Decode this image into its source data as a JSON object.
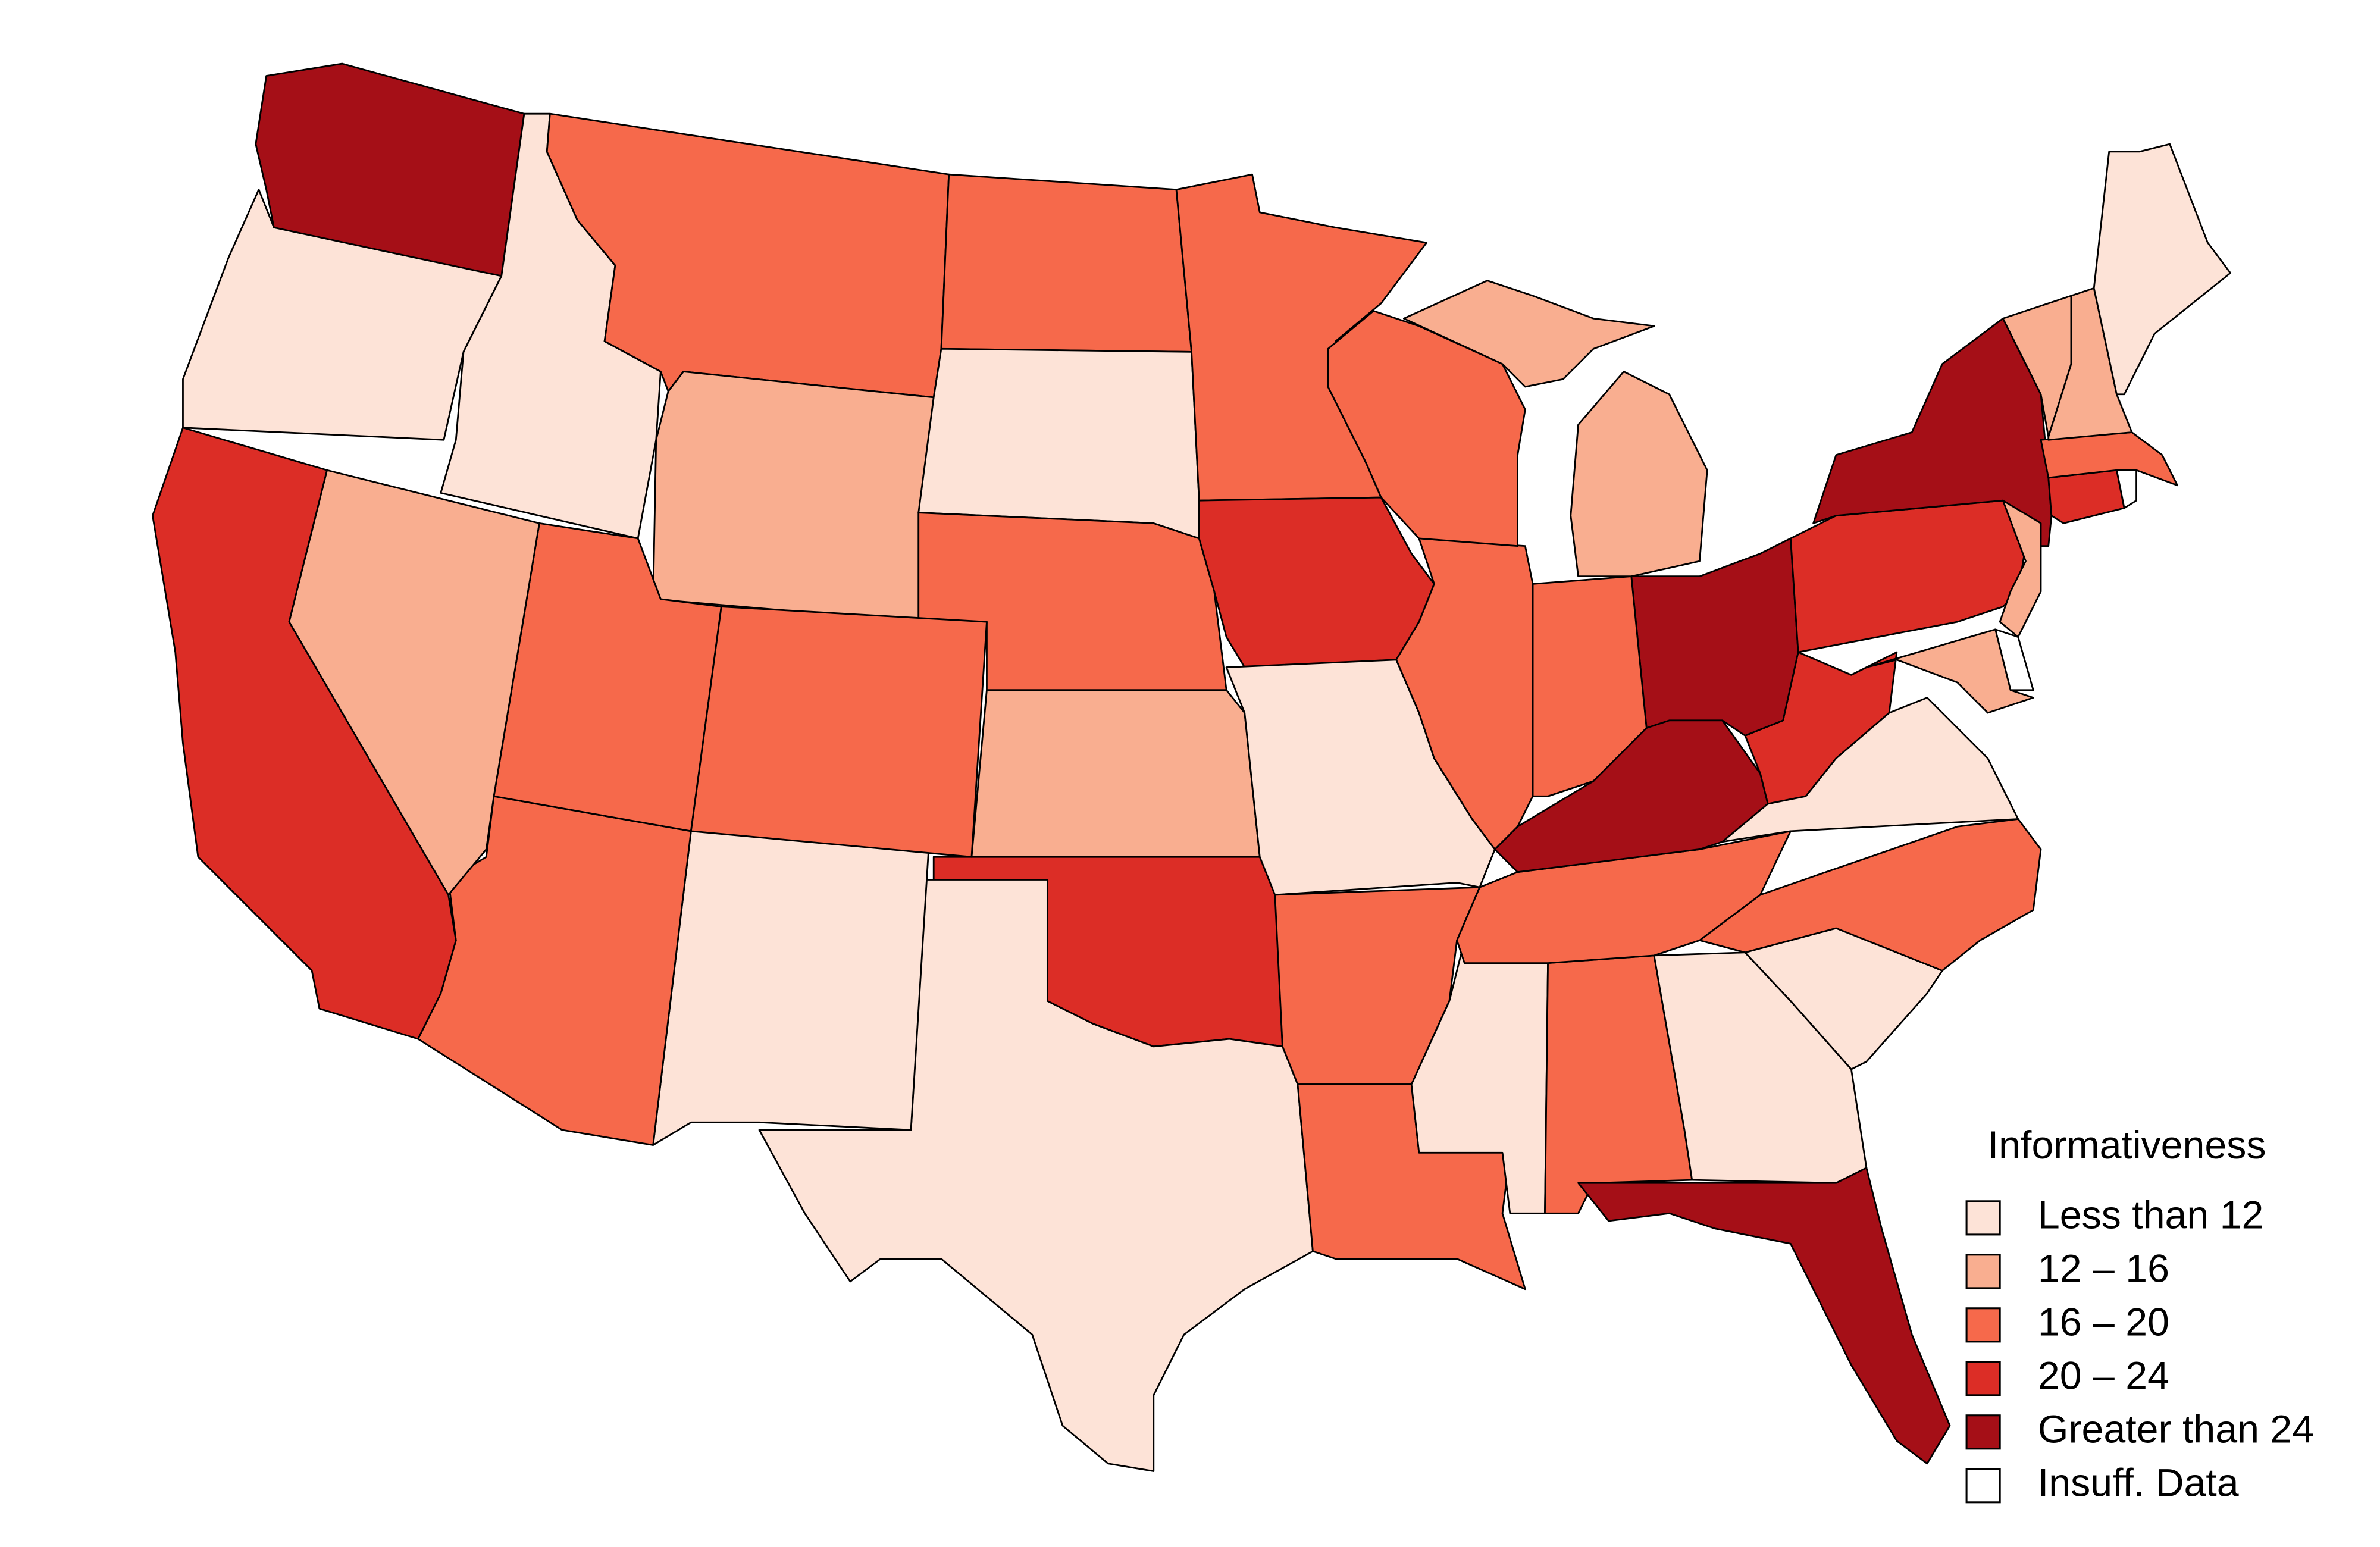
{
  "legend": {
    "title": "Informativeness",
    "items": [
      {
        "label": "Less than 12",
        "color": "#fde3d7"
      },
      {
        "label": "12 – 16",
        "color": "#f9ae90"
      },
      {
        "label": "16 – 20",
        "color": "#f6694b"
      },
      {
        "label": "20 – 24",
        "color": "#dc2d26"
      },
      {
        "label": "Greater than 24",
        "color": "#a50f17"
      },
      {
        "label": "Insuff. Data",
        "color": "#ffffff"
      }
    ]
  },
  "region_classes": [
    4,
    0,
    0,
    2,
    1,
    2,
    0,
    2,
    1,
    3,
    0,
    0,
    2,
    2,
    2,
    1,
    3,
    2,
    3,
    0,
    2,
    2,
    0,
    2,
    0,
    4,
    0,
    2,
    2,
    4,
    3,
    0,
    4,
    2,
    2,
    2,
    1,
    3,
    4,
    1,
    5,
    1,
    3,
    5,
    2,
    1,
    1,
    0
  ]
}
